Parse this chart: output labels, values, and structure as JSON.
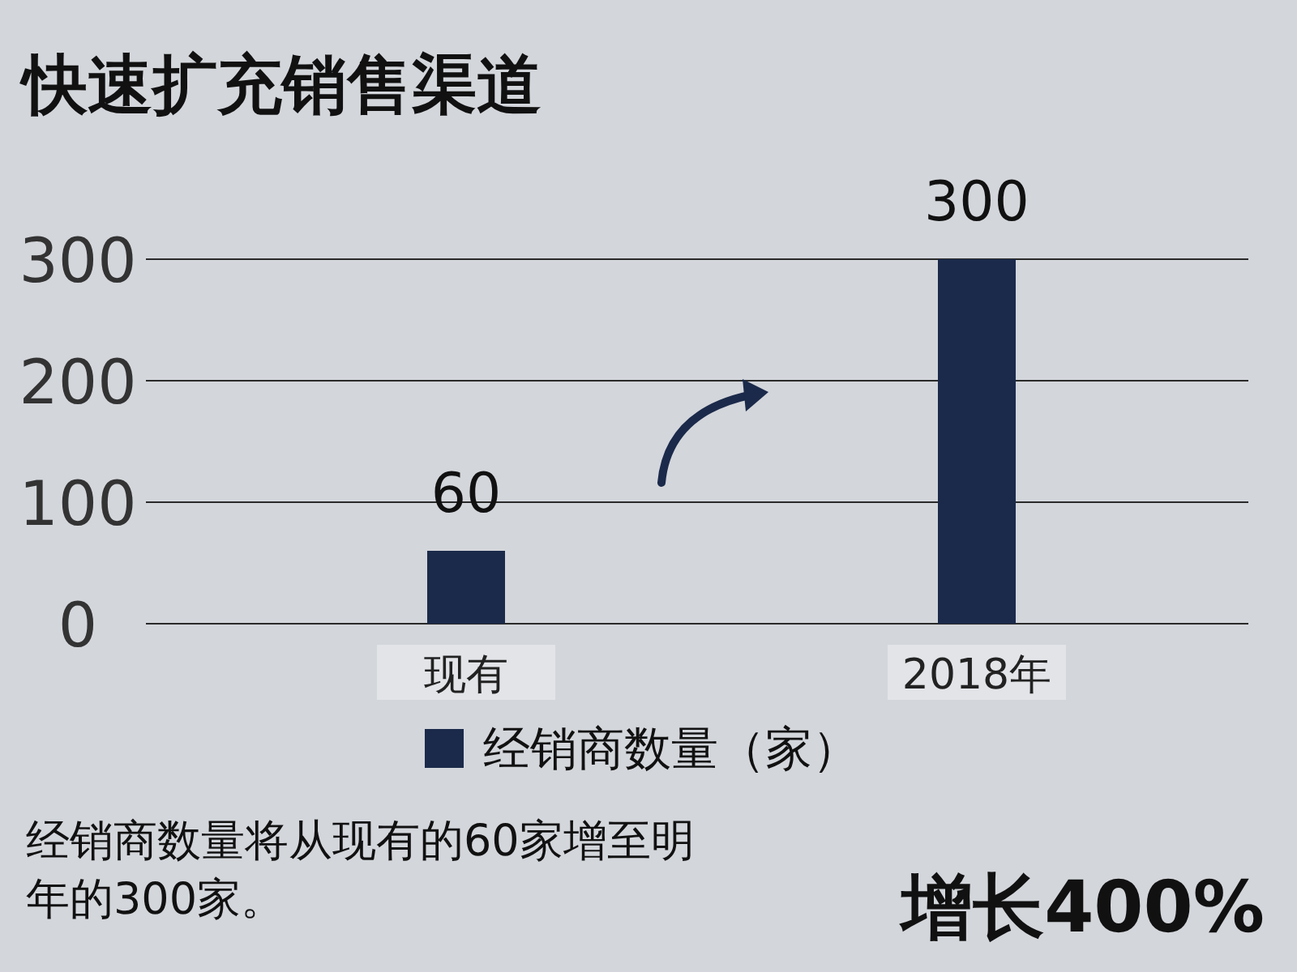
{
  "chart_data": {
    "type": "bar",
    "title": "快速扩充销售渠道",
    "categories": [
      "现有",
      "2018年"
    ],
    "series": [
      {
        "name": "经销商数量（家）",
        "color": "#1b2a4a",
        "values": [
          60,
          300
        ]
      }
    ],
    "ylim": [
      0,
      300
    ],
    "yticks": [
      0,
      100,
      200,
      300
    ],
    "grid": "y",
    "legend": "bottom",
    "data_labels": true,
    "annotations": [
      "经销商数量将从现有的60家增至明年的300家。",
      "增长400%"
    ]
  }
}
